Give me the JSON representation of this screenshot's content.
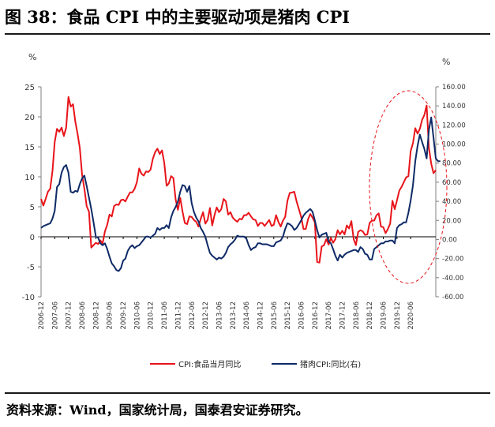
{
  "title": "图 38：食品 CPI 中的主要驱动项是猪肉 CPI",
  "source": "资料来源：Wind，国家统计局，国泰君安证券研究。",
  "chart_data": {
    "type": "line",
    "left_unit": "%",
    "right_unit": "%",
    "left_ylim": [
      -10,
      25
    ],
    "left_ticks": [
      "-10",
      "-5",
      "0",
      "5",
      "10",
      "15",
      "20",
      "25"
    ],
    "right_ylim": [
      -60,
      160
    ],
    "right_ticks": [
      "-60.00",
      "-40.00",
      "-20.00",
      "0.00",
      "20.00",
      "40.00",
      "60.00",
      "80.00",
      "100.00",
      "120.00",
      "140.00",
      "160.00"
    ],
    "x_tick_labels": [
      "2006-12",
      "2007-06",
      "2007-12",
      "2008-06",
      "2008-12",
      "2009-06",
      "2009-12",
      "2010-06",
      "2010-12",
      "2011-06",
      "2011-12",
      "2012-06",
      "2012-12",
      "2013-06",
      "2013-12",
      "2014-06",
      "2014-12",
      "2015-06",
      "2015-12",
      "2016-06",
      "2016-12",
      "2017-06",
      "2017-12",
      "2018-06",
      "2018-12",
      "2019-06",
      "2019-12",
      "2020-06"
    ],
    "x_start": "2006-12",
    "grid": false,
    "legend_position": "bottom",
    "annotation": "dashed red ellipse highlighting 2019-2020 surge",
    "series": [
      {
        "name": "CPI:食品当月同比",
        "axis": "left",
        "color": "#e8141a",
        "values": [
          6.3,
          5.2,
          6.3,
          7.5,
          8.0,
          11.0,
          15.8,
          18.0,
          17.5,
          18.2,
          16.8,
          18.2,
          23.3,
          21.7,
          22.1,
          19.2,
          17.2,
          14.8,
          10.3,
          8.0,
          5.1,
          4.2,
          -1.8,
          -1.4,
          -1.0,
          -1.2,
          -0.6,
          -1.1,
          0.9,
          2.0,
          3.7,
          3.4,
          5.1,
          5.4,
          5.3,
          6.1,
          6.2,
          5.9,
          6.7,
          7.4,
          7.4,
          8.0,
          9.1,
          11.4,
          10.5,
          10.2,
          10.9,
          10.8,
          11.2,
          13.0,
          14.1,
          14.7,
          13.8,
          14.4,
          12.3,
          8.5,
          8.9,
          10.1,
          9.8,
          6.2,
          4.5,
          6.5,
          4.2,
          2.3,
          2.1,
          3.4,
          3.3,
          2.8,
          2.5,
          1.7,
          3.0,
          4.1,
          2.2,
          2.8,
          4.8,
          1.9,
          3.6,
          4.9,
          4.1,
          4.6,
          6.3,
          5.9,
          3.7,
          4.1,
          3.2,
          2.8,
          2.5,
          3.0,
          2.9,
          3.6,
          3.6,
          4.0,
          3.4,
          2.9,
          2.8,
          1.8,
          2.3,
          2.3,
          1.8,
          2.3,
          2.8,
          1.8,
          2.0,
          3.6,
          2.5,
          1.7,
          2.7,
          3.3,
          6.0,
          7.3,
          7.4,
          7.5,
          5.9,
          4.6,
          3.3,
          1.3,
          1.3,
          2.9,
          3.8,
          3.2,
          2.4,
          -4.2,
          -4.3,
          -1.6,
          -1.4,
          -0.4,
          -1.3,
          -0.2,
          -1.0,
          -0.4,
          1.1,
          0.4,
          1.0,
          0.4,
          1.9,
          1.4,
          2.6,
          -0.4,
          -1.4,
          0.8,
          1.1,
          0.9,
          0.3,
          0.4,
          2.3,
          2.7,
          2.7,
          3.6,
          3.9,
          1.7,
          1.6,
          0.6,
          1.3,
          2.2,
          6.0,
          4.6,
          6.1,
          7.7,
          8.3,
          9.1,
          9.9,
          10.1,
          14.3,
          15.6,
          18.1,
          17.2,
          18.0,
          19.5,
          20.3,
          21.9,
          14.8,
          12.2,
          10.6,
          11.1
        ]
      },
      {
        "name": "猪肉CPI:同比(右)",
        "axis": "right",
        "color": "#0e2a66",
        "values": [
          12.0,
          14.0,
          15.0,
          16.0,
          17.0,
          22.0,
          30.0,
          55.0,
          58.0,
          70.0,
          76.0,
          78.0,
          70.0,
          50.0,
          49.0,
          51.0,
          50.0,
          58.0,
          64.0,
          67.0,
          56.0,
          44.0,
          32.0,
          18.0,
          3.0,
          2.0,
          -4.0,
          -6.0,
          -4.0,
          -10.0,
          -18.0,
          -25.0,
          -28.0,
          -32.0,
          -33.0,
          -30.0,
          -22.0,
          -20.0,
          -12.0,
          -8.0,
          -6.0,
          -9.0,
          -7.0,
          -6.0,
          -3.0,
          0.0,
          3.0,
          3.0,
          2.0,
          4.0,
          6.0,
          12.0,
          10.0,
          12.0,
          12.0,
          15.0,
          12.0,
          23.0,
          30.0,
          34.0,
          40.0,
          50.0,
          57.0,
          56.0,
          50.0,
          56.0,
          38.0,
          29.0,
          23.0,
          19.0,
          12.0,
          8.0,
          3.0,
          -6.0,
          -14.0,
          -17.0,
          -19.0,
          -21.0,
          -19.0,
          -20.0,
          -18.0,
          -14.0,
          -8.0,
          -5.0,
          -3.0,
          0.0,
          4.0,
          3.0,
          3.0,
          3.0,
          1.0,
          -6.0,
          -11.0,
          -9.0,
          -8.0,
          -4.0,
          -4.0,
          -5.0,
          -5.0,
          -5.0,
          -6.0,
          -7.0,
          -7.0,
          -3.0,
          -2.0,
          -1.0,
          3.0,
          11.0,
          17.0,
          16.0,
          14.0,
          10.0,
          12.0,
          16.0,
          20.0,
          25.0,
          28.0,
          30.0,
          32.0,
          29.0,
          20.0,
          10.0,
          2.0,
          5.0,
          6.0,
          7.0,
          -2.0,
          -4.0,
          -10.0,
          -17.0,
          -22.0,
          -16.0,
          -19.0,
          -16.0,
          -14.0,
          -13.0,
          -12.0,
          -11.0,
          -11.0,
          -13.0,
          -8.0,
          -10.0,
          -15.0,
          -16.0,
          -21.0,
          -21.0,
          -10.0,
          -8.0,
          -6.0,
          -4.0,
          -4.0,
          -2.0,
          -2.0,
          -1.0,
          -1.0,
          -4.0,
          12.0,
          15.0,
          16.0,
          18.0,
          18.0,
          28.0,
          41.0,
          57.0,
          82.0,
          98.0,
          110.0,
          102.0,
          95.0,
          85.0,
          115.0,
          128.0,
          107.0,
          85.0,
          82.0,
          82.0
        ]
      }
    ]
  },
  "colors": {
    "cpi_food": "#e8141a",
    "pork": "#0e2a66",
    "axis": "#808080",
    "annotation": "#e8141a"
  }
}
